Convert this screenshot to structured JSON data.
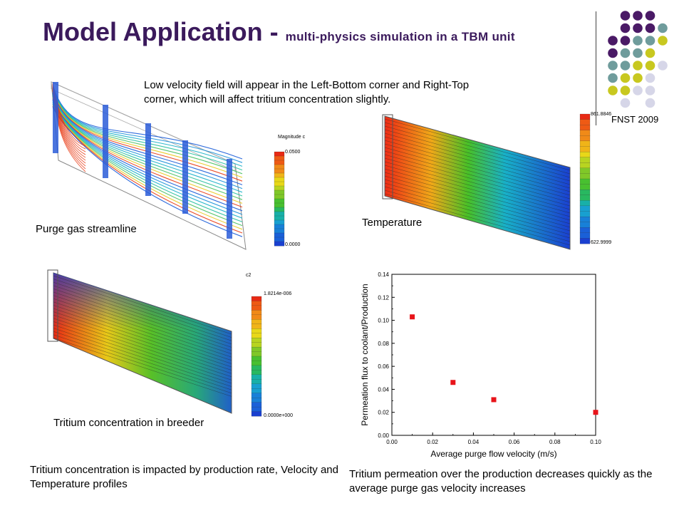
{
  "title": {
    "main": "Model Application - ",
    "sub": "multi-physics simulation in a TBM unit"
  },
  "footer_tag": "FNST 2009",
  "note_low_velocity": "Low velocity field will appear in the Left-Bottom corner and Right-Top corner, which will affect tritium concentration slightly.",
  "panels": {
    "streamline": {
      "caption": "Purge gas streamline",
      "colorbar_title": "Magnitude c",
      "colorbar_max": "0.0500",
      "colorbar_min": "0.0000"
    },
    "temperature": {
      "caption": "Temperature",
      "colorbar_max": "861.8846",
      "colorbar_min": "622.9999"
    },
    "tritium": {
      "caption": "Tritium concentration in breeder",
      "colorbar_title": "c2",
      "colorbar_max": "1.8214e-006",
      "colorbar_min": "0.0000e+000"
    }
  },
  "text_concentration": "Tritium concentration is impacted by production rate, Velocity and Temperature profiles",
  "text_permeation": "Tritium permeation over the production decreases quickly as the average purge gas velocity increases",
  "chart_data": {
    "type": "scatter",
    "xlabel": "Average purge flow velocity (m/s)",
    "ylabel": "Permeation flux to coolant/Production",
    "xlim": [
      0,
      0.1
    ],
    "ylim": [
      0,
      0.14
    ],
    "x_ticks": [
      "0.00",
      "0.02",
      "0.04",
      "0.06",
      "0.08",
      "0.10"
    ],
    "y_ticks": [
      "0.00",
      "0.02",
      "0.04",
      "0.06",
      "0.08",
      "0.10",
      "0.12",
      "0.14"
    ],
    "x": [
      0.01,
      0.03,
      0.05,
      0.1
    ],
    "y": [
      0.103,
      0.046,
      0.031,
      0.02
    ],
    "marker_color": "#e8141a"
  },
  "colors": {
    "title": "#3b1a5c",
    "dot_purple": "#4a1a66",
    "dot_teal": "#6f9c9c",
    "dot_yellow": "#c8c820",
    "dot_lavender": "#d6d6e8"
  }
}
